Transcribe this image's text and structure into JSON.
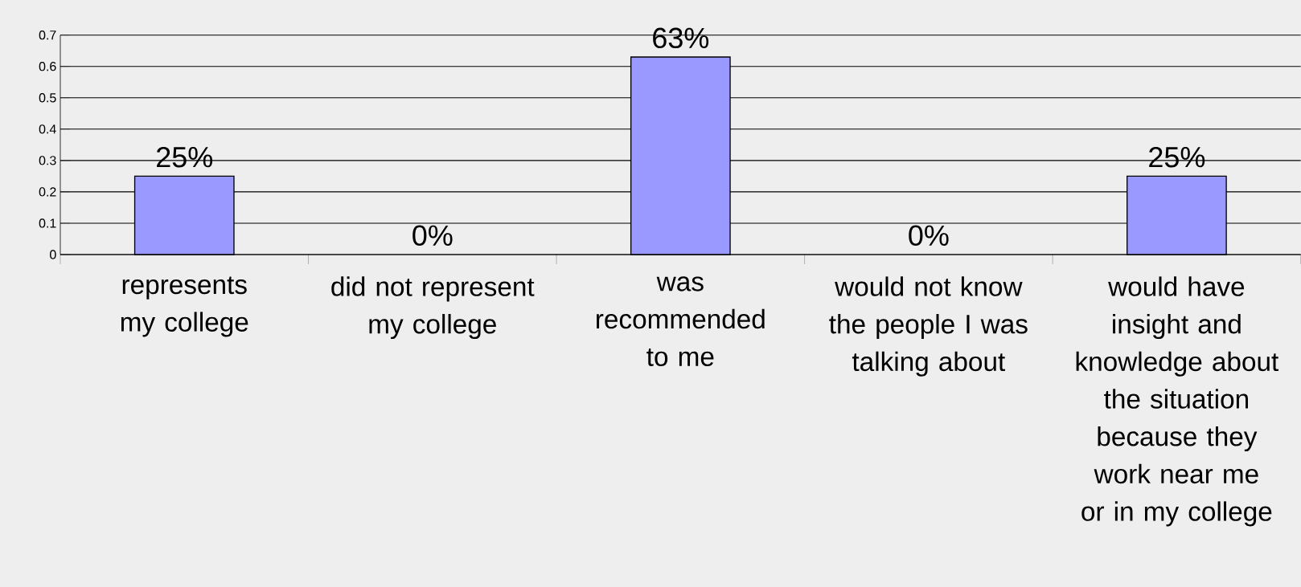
{
  "chart_data": {
    "type": "bar",
    "categories": [
      "represents my college",
      "did not represent my college",
      "was recommended to me",
      "would not know the people I was talking about",
      "would have insight and knowledge about the situation because they work near me or in my college"
    ],
    "values": [
      0.25,
      0,
      0.63,
      0,
      0.25
    ],
    "value_labels": [
      "25%",
      "0%",
      "63%",
      "0%",
      "25%"
    ],
    "color": "#9999ff",
    "ylim": [
      0,
      0.7
    ],
    "yticks": [
      0,
      0.1,
      0.2,
      0.3,
      0.4,
      0.5,
      0.6,
      0.7
    ],
    "grid": "y"
  }
}
